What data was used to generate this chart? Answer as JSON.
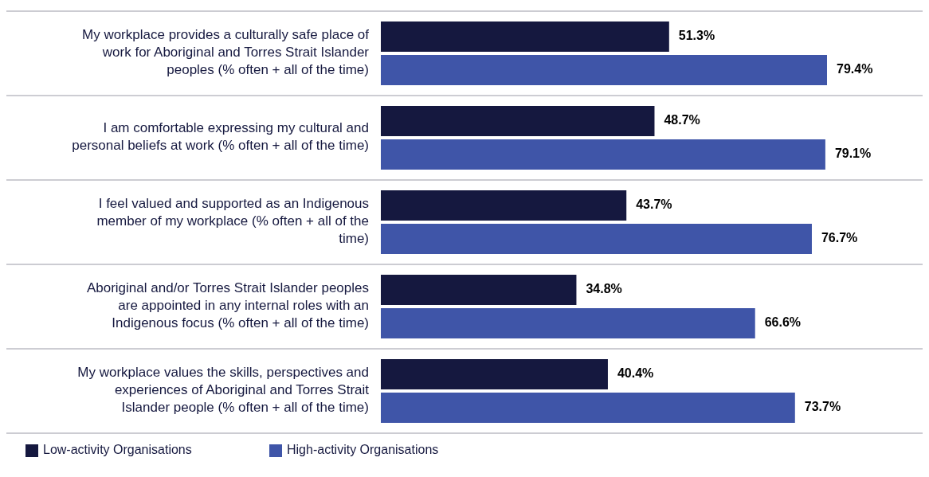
{
  "chart_data": {
    "type": "bar",
    "orientation": "horizontal",
    "legend": "bottom left",
    "categories": [
      "My workplace provides a culturally safe place of work for Aboriginal and Torres Strait Islander peoples (% often + all of the time)",
      "I am comfortable expressing my cultural and personal beliefs at work (% often + all of the time)",
      "I feel valued and supported as an Indigenous member of my workplace (% often + all of the time)",
      "Aboriginal and/or Torres Strait Islander peoples are appointed in any internal roles with an Indigenous focus (% often + all of the time)",
      "My workplace values the skills, perspectives and experiences of Aboriginal and Torres Strait Islander people (% often + all of the time)"
    ],
    "series": [
      {
        "name": "Low-activity Organisations",
        "color": "#15183f",
        "values": [
          51.3,
          48.7,
          43.7,
          34.8,
          40.4
        ],
        "value_labels": [
          "51.3%",
          "48.7%",
          "43.7%",
          "34.8%",
          "40.4%"
        ]
      },
      {
        "name": "High-activity Organisations",
        "color": "#3f55a8",
        "values": [
          79.4,
          79.1,
          76.7,
          66.6,
          73.7
        ],
        "value_labels": [
          "79.4%",
          "79.1%",
          "76.7%",
          "66.6%",
          "73.7%"
        ]
      }
    ]
  }
}
